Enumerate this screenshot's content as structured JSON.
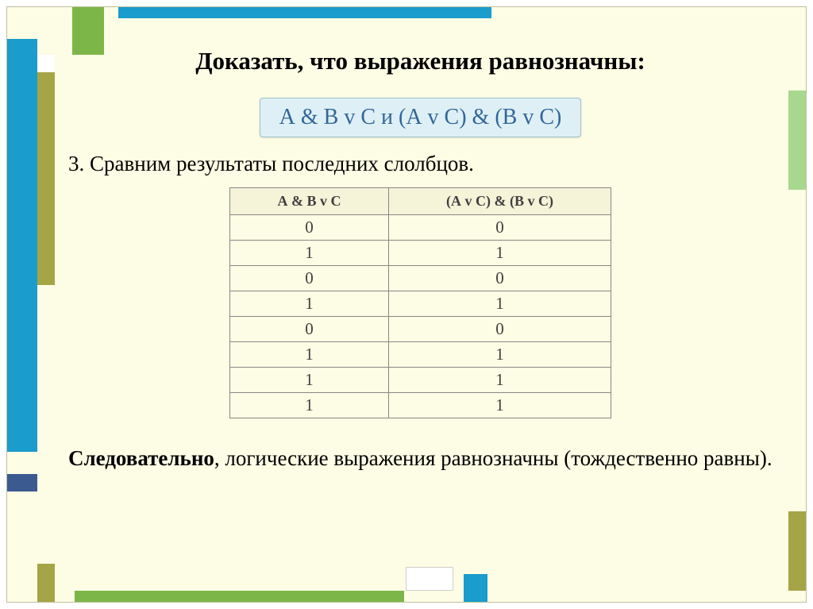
{
  "slide": {
    "title": "Доказать, что выражения равнозначны:",
    "expression": "А & В v С    и    (А v С) & (В v С)",
    "step_text": "3. Сравним результаты последних слолбцов.",
    "conclusion_bold": "Следовательно",
    "conclusion_rest": ", логические выражения равнозначны (тождественно равны).",
    "table": {
      "headers": [
        "А & В v С",
        "(А v С) & (В v С)"
      ],
      "rows": [
        [
          "0",
          "0"
        ],
        [
          "1",
          "1"
        ],
        [
          "0",
          "0"
        ],
        [
          "1",
          "1"
        ],
        [
          "0",
          "0"
        ],
        [
          "1",
          "1"
        ],
        [
          "1",
          "1"
        ],
        [
          "1",
          "1"
        ]
      ]
    }
  },
  "style": {
    "background_color": "#fdfce4",
    "title_color": "#000000",
    "title_fontsize": 31,
    "expression_box_bg": "#def0f5",
    "expression_box_border": "#a0c0d0",
    "expression_color": "#336699",
    "expression_fontsize": 28,
    "body_fontsize": 27,
    "table_border_color": "#888888",
    "table_header_bg": "#f5f3d8",
    "table_header_fontsize": 18,
    "table_cell_fontsize": 21,
    "frame_colors": {
      "green": "#7db648",
      "blue": "#1a9ccc",
      "olive": "#a5a547",
      "light_green": "#a8d78f",
      "dark_blue": "#3b5a8f",
      "white": "#ffffff"
    }
  }
}
